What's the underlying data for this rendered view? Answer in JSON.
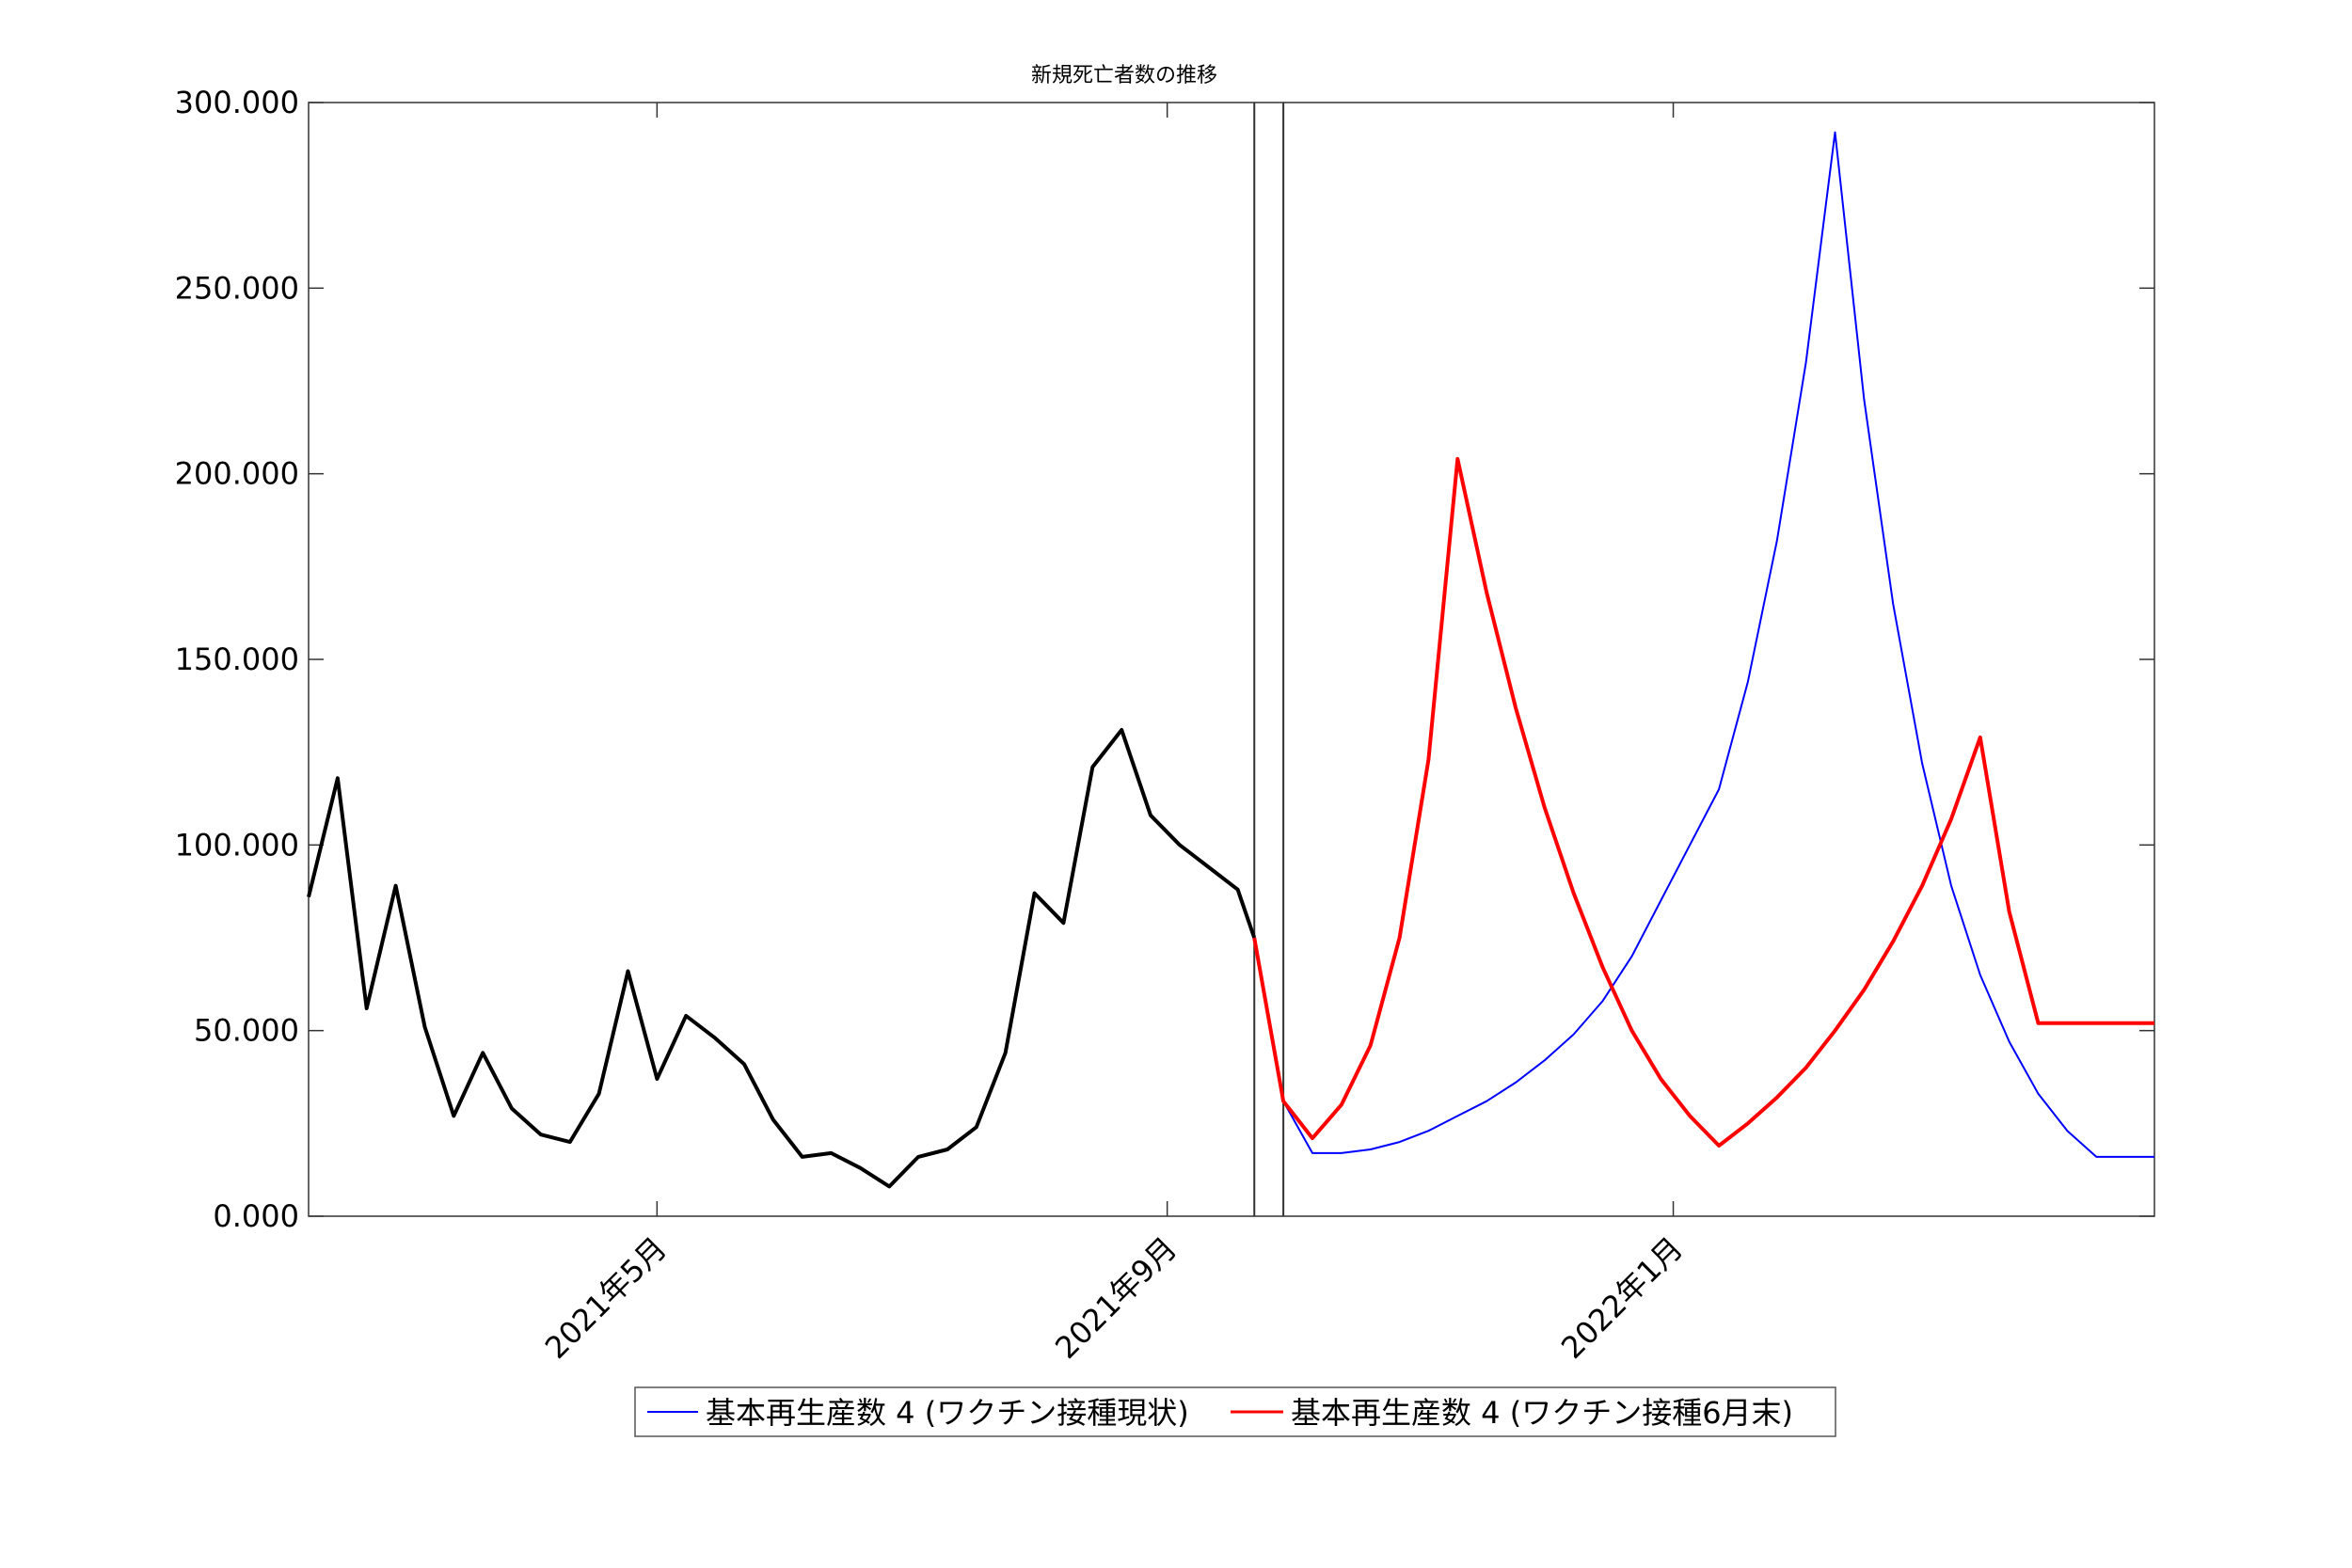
{
  "chart_data": {
    "type": "line",
    "title": "新規死亡者数の推移",
    "xlabel": "",
    "ylabel": "",
    "ylim": [
      0,
      300
    ],
    "yticks": [
      0,
      50,
      100,
      150,
      200,
      250,
      300
    ],
    "ytick_labels": [
      "0.000",
      "50.000",
      "100.000",
      "150.000",
      "200.000",
      "250.000",
      "300.000"
    ],
    "xlim": [
      "2021-02-06",
      "2022-04-27"
    ],
    "xticks": [
      "2021-05-01",
      "2021-09-01",
      "2022-01-01"
    ],
    "xtick_labels": [
      "2021年5月",
      "2021年9月",
      "2022年1月"
    ],
    "grid": false,
    "legend_position": "bottom-outside",
    "vertical_lines": [
      "2021-09-22",
      "2021-09-29"
    ],
    "series": [
      {
        "name": "",
        "color": "#000000",
        "x": [
          "2021-02-06",
          "2021-02-13",
          "2021-02-20",
          "2021-02-27",
          "2021-03-06",
          "2021-03-13",
          "2021-03-20",
          "2021-03-27",
          "2021-04-03",
          "2021-04-10",
          "2021-04-17",
          "2021-04-24",
          "2021-05-01",
          "2021-05-08",
          "2021-05-15",
          "2021-05-22",
          "2021-05-29",
          "2021-06-05",
          "2021-06-12",
          "2021-06-19",
          "2021-06-26",
          "2021-07-03",
          "2021-07-10",
          "2021-07-17",
          "2021-07-24",
          "2021-07-31",
          "2021-08-07",
          "2021-08-14",
          "2021-08-21",
          "2021-08-28",
          "2021-09-04",
          "2021-09-11",
          "2021-09-18",
          "2021-09-22"
        ],
        "y": [
          86,
          118,
          56,
          89,
          51,
          27,
          44,
          29,
          22,
          20,
          33,
          66,
          37,
          54,
          48,
          41,
          26,
          16,
          17,
          13,
          8,
          16,
          18,
          24,
          44,
          87,
          79,
          121,
          131,
          108,
          100,
          94,
          88,
          75
        ]
      },
      {
        "name": "基本再生産数 4 (ワクチン接種現状)",
        "color": "#0000ff",
        "x": [
          "2021-09-22",
          "2021-09-29",
          "2021-10-06",
          "2021-10-13",
          "2021-10-20",
          "2021-10-27",
          "2021-11-03",
          "2021-11-10",
          "2021-11-17",
          "2021-11-24",
          "2021-12-01",
          "2021-12-08",
          "2021-12-15",
          "2021-12-22",
          "2021-12-29",
          "2022-01-05",
          "2022-01-12",
          "2022-01-19",
          "2022-01-26",
          "2022-02-02",
          "2022-02-09",
          "2022-02-16",
          "2022-02-23",
          "2022-03-02",
          "2022-03-09",
          "2022-03-16",
          "2022-03-23",
          "2022-03-30",
          "2022-04-06",
          "2022-04-13",
          "2022-04-20",
          "2022-04-27"
        ],
        "y": [
          75,
          31,
          17,
          17,
          18,
          20,
          23,
          27,
          31,
          36,
          42,
          49,
          58,
          70,
          85,
          100,
          115,
          144,
          182,
          230,
          292,
          220,
          165,
          122,
          89,
          65,
          47,
          33,
          23,
          16,
          16,
          16
        ]
      },
      {
        "name": "基本再生産数 4 (ワクチン接種6月末)",
        "color": "#ff0000",
        "x": [
          "2021-09-22",
          "2021-09-29",
          "2021-10-06",
          "2021-10-13",
          "2021-10-20",
          "2021-10-27",
          "2021-11-03",
          "2021-11-10",
          "2021-11-17",
          "2021-11-24",
          "2021-12-01",
          "2021-12-08",
          "2021-12-15",
          "2021-12-22",
          "2021-12-29",
          "2022-01-05",
          "2022-01-12",
          "2022-01-19",
          "2022-01-26",
          "2022-02-02",
          "2022-02-09",
          "2022-02-16",
          "2022-02-23",
          "2022-03-02",
          "2022-03-09",
          "2022-03-16",
          "2022-03-23",
          "2022-03-30",
          "2022-04-06",
          "2022-04-13",
          "2022-04-20",
          "2022-04-27"
        ],
        "y": [
          75,
          31,
          21,
          30,
          46,
          75,
          123,
          204,
          168,
          137,
          110,
          87,
          67,
          50,
          37,
          27,
          19,
          25,
          32,
          40,
          50,
          61,
          74,
          89,
          107,
          129,
          82,
          52,
          52,
          52,
          52,
          52
        ]
      }
    ]
  }
}
